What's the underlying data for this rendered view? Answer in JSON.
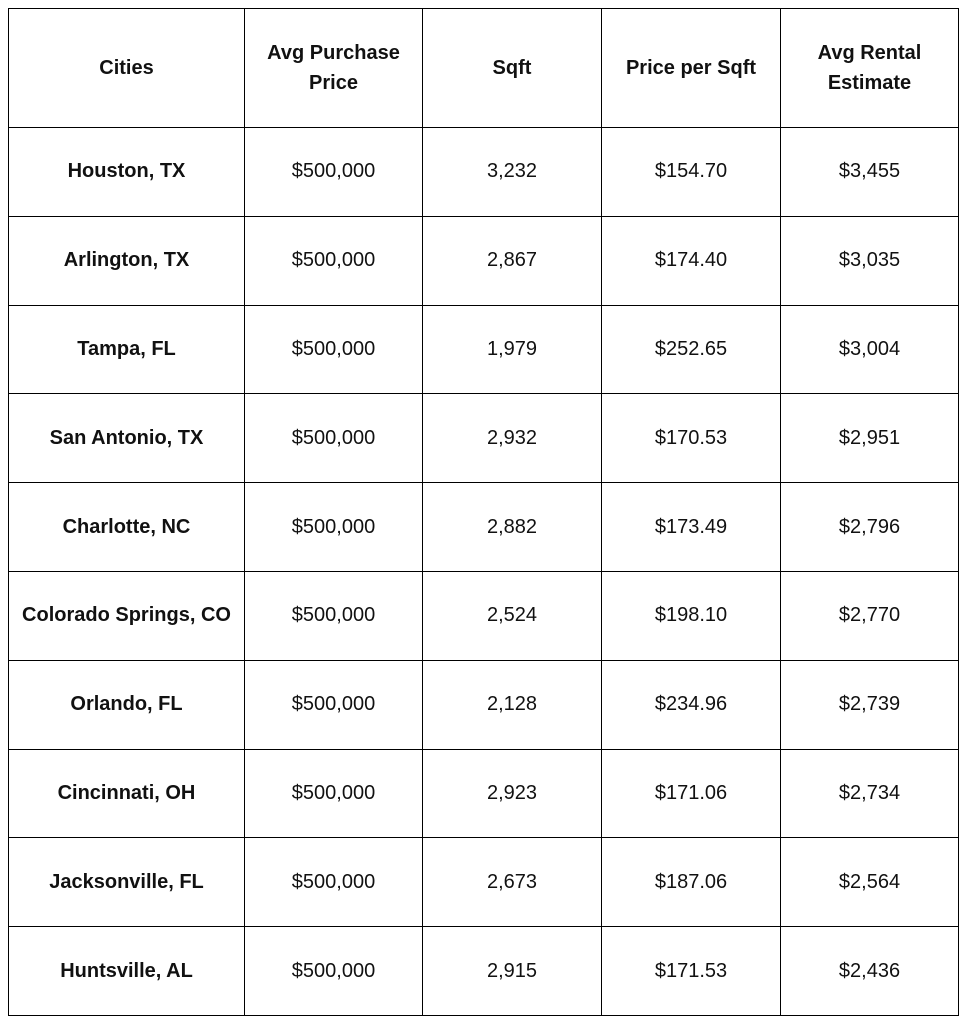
{
  "table": {
    "headers": [
      "Cities",
      "Avg Purchase Price",
      "Sqft",
      "Price per Sqft",
      "Avg Rental Estimate"
    ],
    "header_lines": [
      [
        "Cities"
      ],
      [
        "Avg Purchase",
        "Price"
      ],
      [
        "Sqft"
      ],
      [
        "Price per Sqft"
      ],
      [
        "Avg Rental",
        "Estimate"
      ]
    ],
    "rows": [
      [
        "Houston, TX",
        "$500,000",
        "3,232",
        "$154.70",
        "$3,455"
      ],
      [
        "Arlington, TX",
        "$500,000",
        "2,867",
        "$174.40",
        "$3,035"
      ],
      [
        "Tampa, FL",
        "$500,000",
        "1,979",
        "$252.65",
        "$3,004"
      ],
      [
        "San Antonio, TX",
        "$500,000",
        "2,932",
        "$170.53",
        "$2,951"
      ],
      [
        "Charlotte, NC",
        "$500,000",
        "2,882",
        "$173.49",
        "$2,796"
      ],
      [
        "Colorado Springs, CO",
        "$500,000",
        "2,524",
        "$198.10",
        "$2,770"
      ],
      [
        "Orlando, FL",
        "$500,000",
        "2,128",
        "$234.96",
        "$2,739"
      ],
      [
        "Cincinnati, OH",
        "$500,000",
        "2,923",
        "$171.06",
        "$2,734"
      ],
      [
        "Jacksonville, FL",
        "$500,000",
        "2,673",
        "$187.06",
        "$2,564"
      ],
      [
        "Huntsville, AL",
        "$500,000",
        "2,915",
        "$171.53",
        "$2,436"
      ]
    ]
  },
  "colors": {
    "border": "#000000",
    "text": "#111111",
    "background": "#ffffff"
  }
}
